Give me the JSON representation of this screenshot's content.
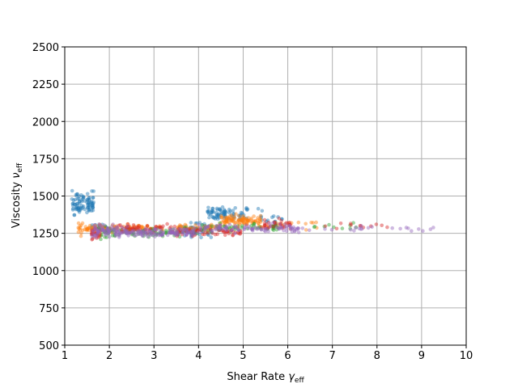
{
  "chart_data": {
    "type": "scatter",
    "xlabel": "Shear Rate",
    "xlabel_symbol": "γ",
    "xlabel_sub": "eff",
    "ylabel": "Viscosity",
    "ylabel_symbol": "ν",
    "ylabel_sub": "eff",
    "xlim": [
      1,
      10
    ],
    "ylim": [
      500,
      2500
    ],
    "x_ticks": [
      "1",
      "2",
      "3",
      "4",
      "5",
      "6",
      "7",
      "8",
      "9",
      "10"
    ],
    "y_ticks": [
      "500",
      "750",
      "1000",
      "1250",
      "1500",
      "1750",
      "2000",
      "2250",
      "2500"
    ],
    "grid": true,
    "legend": "none",
    "series": [
      {
        "color": "#1f77b4",
        "clusters": [
          {
            "x": [
              1.15,
              1.65
            ],
            "y": [
              1330,
              1560
            ],
            "n": 90
          },
          {
            "x": [
              1.6,
              2.0
            ],
            "y": [
              1250,
              1320
            ],
            "n": 25
          },
          {
            "x": [
              3.5,
              4.3
            ],
            "y": [
              1200,
              1340
            ],
            "n": 60
          },
          {
            "x": [
              4.2,
              5.1
            ],
            "y": [
              1300,
              1460
            ],
            "n": 80
          },
          {
            "x": [
              5.3,
              5.9
            ],
            "y": [
              1260,
              1440
            ],
            "n": 18
          }
        ]
      },
      {
        "color": "#ff7f0e",
        "clusters": [
          {
            "x": [
              1.3,
              1.8
            ],
            "y": [
              1220,
              1340
            ],
            "n": 45
          },
          {
            "x": [
              1.8,
              3.2
            ],
            "y": [
              1250,
              1320
            ],
            "n": 70
          },
          {
            "x": [
              3.5,
              4.5
            ],
            "y": [
              1250,
              1320
            ],
            "n": 55
          },
          {
            "x": [
              4.5,
              5.4
            ],
            "y": [
              1280,
              1390
            ],
            "n": 90
          },
          {
            "x": [
              5.4,
              6.7
            ],
            "y": [
              1260,
              1350
            ],
            "n": 20
          }
        ]
      },
      {
        "color": "#2ca02c",
        "clusters": [
          {
            "x": [
              1.6,
              2.2
            ],
            "y": [
              1190,
              1320
            ],
            "n": 25
          },
          {
            "x": [
              2.2,
              4.0
            ],
            "y": [
              1220,
              1300
            ],
            "n": 70
          },
          {
            "x": [
              4.0,
              5.8
            ],
            "y": [
              1250,
              1330
            ],
            "n": 55
          },
          {
            "x": [
              6.5,
              7.8
            ],
            "y": [
              1270,
              1330
            ],
            "n": 10
          }
        ]
      },
      {
        "color": "#d62728",
        "clusters": [
          {
            "x": [
              1.6,
              1.8
            ],
            "y": [
              1170,
              1320
            ],
            "n": 25
          },
          {
            "x": [
              2.0,
              3.5
            ],
            "y": [
              1240,
              1320
            ],
            "n": 50
          },
          {
            "x": [
              3.5,
              5.0
            ],
            "y": [
              1220,
              1300
            ],
            "n": 55
          },
          {
            "x": [
              5.4,
              6.1
            ],
            "y": [
              1250,
              1360
            ],
            "n": 30
          },
          {
            "x": [
              6.5,
              8.4
            ],
            "y": [
              1270,
              1330
            ],
            "n": 12
          }
        ]
      },
      {
        "color": "#9467bd",
        "clusters": [
          {
            "x": [
              1.6,
              2.3
            ],
            "y": [
              1200,
              1330
            ],
            "n": 70
          },
          {
            "x": [
              2.3,
              4.0
            ],
            "y": [
              1220,
              1300
            ],
            "n": 110
          },
          {
            "x": [
              4.0,
              6.3
            ],
            "y": [
              1240,
              1330
            ],
            "n": 90
          },
          {
            "x": [
              6.3,
              9.4
            ],
            "y": [
              1250,
              1310
            ],
            "n": 22
          }
        ]
      }
    ]
  }
}
